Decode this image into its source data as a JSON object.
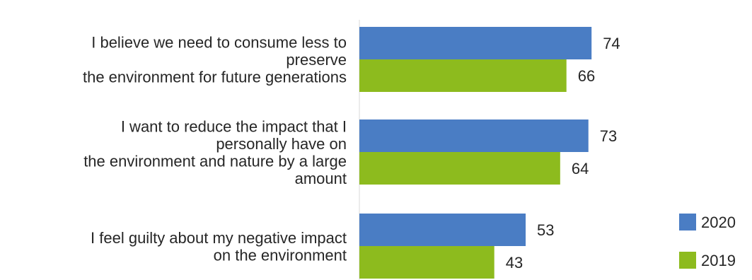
{
  "chart_data": {
    "type": "bar",
    "orientation": "horizontal",
    "categories": [
      [
        "I believe we need to consume less to",
        "preserve",
        "the environment for future generations"
      ],
      [
        "I want to reduce the impact that I",
        "personally have on",
        "the environment and nature by a large",
        "amount"
      ],
      [
        "I feel guilty about my negative impact",
        "on the environment"
      ]
    ],
    "series": [
      {
        "name": "2020",
        "color": "#4a7dc4",
        "values": [
          74,
          73,
          53
        ]
      },
      {
        "name": "2019",
        "color": "#8dbb1e",
        "values": [
          66,
          64,
          43
        ]
      }
    ],
    "xlim": [
      0,
      100
    ],
    "grid": false,
    "legend": "bottom-right",
    "title": "",
    "xlabel": "",
    "ylabel": ""
  }
}
